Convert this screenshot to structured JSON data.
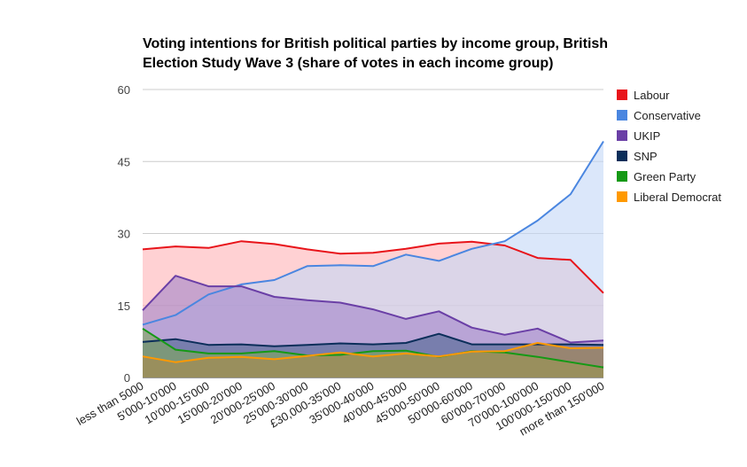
{
  "chart_data": {
    "type": "area",
    "title_lines": [
      "Voting intentions for British political parties by income group, British",
      "Election Study Wave 3 (share of votes in each income group)"
    ],
    "xlabel": "",
    "ylabel": "",
    "ylim": [
      0,
      60
    ],
    "yticks": [
      "0",
      "15",
      "30",
      "45",
      "60"
    ],
    "grid": true,
    "legend_position": "right",
    "categories": [
      "less than 5000",
      "5'000-10'000",
      "10'000-15'000",
      "15'000-20'000",
      "20'000-25'000",
      "25'000-30'000",
      "£30,000-35'000",
      "35'000-40'000",
      "40'000-45'000",
      "45'000-50'000",
      "50'000-60'000",
      "60'000-70'000",
      "70'000-100'000",
      "100'000-150'000",
      "more than 150'000"
    ],
    "series": [
      {
        "name": "Labour",
        "color": "#e8141a",
        "fill": "#ffb3b5",
        "values": [
          26.7,
          27.3,
          27.0,
          28.4,
          27.8,
          26.7,
          25.8,
          26.0,
          26.8,
          27.9,
          28.3,
          27.5,
          24.9,
          24.5,
          17.6
        ]
      },
      {
        "name": "Conservative",
        "color": "#4a86e0",
        "fill": "#c3d7f7",
        "values": [
          11.0,
          13.0,
          17.3,
          19.4,
          20.3,
          23.2,
          23.4,
          23.2,
          25.6,
          24.3,
          26.8,
          28.4,
          32.7,
          38.2,
          49.2
        ]
      },
      {
        "name": "UKIP",
        "color": "#6a3fa6",
        "fill": "#a284c9",
        "values": [
          14.0,
          21.2,
          19.0,
          19.0,
          16.8,
          16.1,
          15.6,
          14.2,
          12.2,
          13.8,
          10.4,
          8.9,
          10.2,
          7.3,
          7.7
        ]
      },
      {
        "name": "SNP",
        "color": "#0b2e5a",
        "fill": "#4d6691",
        "values": [
          7.4,
          8.0,
          6.8,
          6.9,
          6.5,
          6.8,
          7.1,
          6.9,
          7.2,
          9.1,
          6.9,
          6.9,
          6.9,
          6.9,
          6.8
        ]
      },
      {
        "name": "Green Party",
        "color": "#159915",
        "fill": "#7fa85a",
        "values": [
          10.2,
          5.8,
          5.0,
          5.0,
          5.5,
          4.6,
          4.7,
          5.5,
          5.6,
          4.3,
          5.5,
          5.2,
          4.3,
          3.2,
          2.1
        ]
      },
      {
        "name": "Liberal Democrat",
        "color": "#ff9900",
        "fill": "#ad8a4a",
        "values": [
          4.4,
          3.2,
          4.1,
          4.3,
          3.8,
          4.5,
          5.2,
          4.4,
          5.0,
          4.4,
          5.4,
          5.5,
          7.2,
          6.1,
          6.2
        ]
      }
    ]
  }
}
